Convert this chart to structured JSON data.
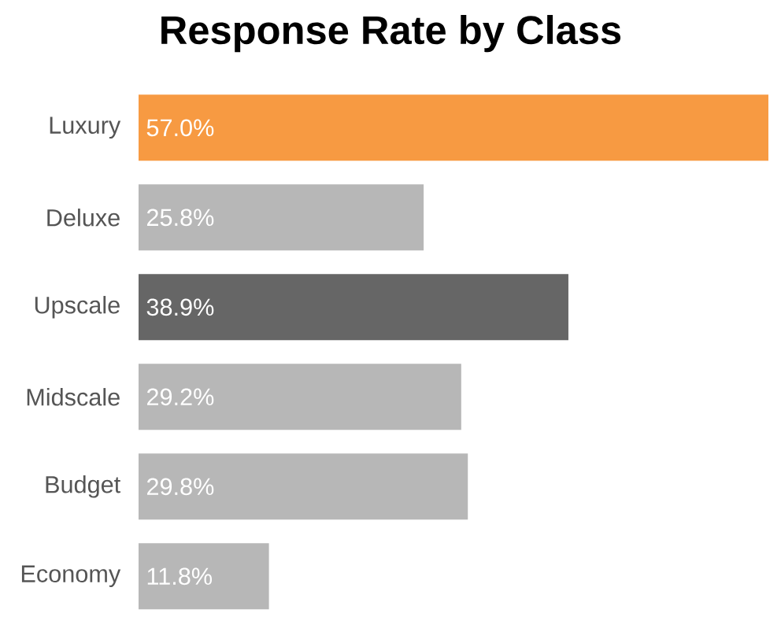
{
  "chart_data": {
    "type": "bar",
    "orientation": "horizontal",
    "title": "Response Rate by Class",
    "categories": [
      "Luxury",
      "Deluxe",
      "Upscale",
      "Midscale",
      "Budget",
      "Economy"
    ],
    "values": [
      57.0,
      25.8,
      38.9,
      29.2,
      29.8,
      11.8
    ],
    "colors": [
      "#f79a42",
      "#b7b7b7",
      "#666666",
      "#b7b7b7",
      "#b7b7b7",
      "#b7b7b7"
    ],
    "value_labels": [
      "57.0%",
      "25.8%",
      "38.9%",
      "29.2%",
      "29.8%",
      "11.8%"
    ]
  }
}
